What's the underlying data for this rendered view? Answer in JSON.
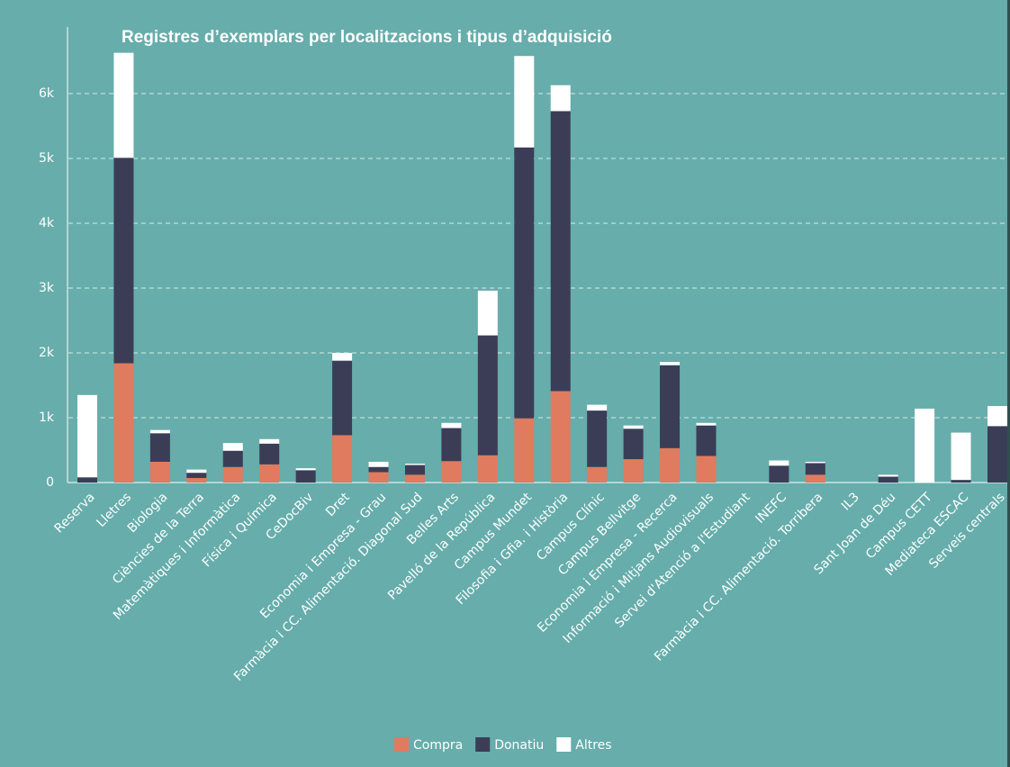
{
  "chart_data": {
    "type": "stacked_bar",
    "title": "Registres d’exemplars per localitzacions i tipus d’adquisició",
    "categories": [
      "Reserva",
      "Lletres",
      "Biologia",
      "Ciències de la Terra",
      "Matemàtiques i Informàtica",
      "Física i Química",
      "CeDocBiv",
      "Dret",
      "Economia i Empresa - Grau",
      "Farmàcia i CC. Alimentació. Diagonal Sud",
      "Belles Arts",
      "Pavelló de la República",
      "Campus Mundet",
      "Filosofia i Gfia. i Història",
      "Campus Clínic",
      "Campus Bellvitge",
      "Economia i Empresa - Recerca",
      "Informació i Mitjans Audiovisuals",
      "Servei d'Atenció a l'Estudiant",
      "INEFC",
      "Farmàcia i CC. Alimentació. Torribera",
      "IL3",
      "Sant Joan de Déu",
      "Campus CETT",
      "Mediateca ESCAC",
      "Serveis centrals"
    ],
    "series": [
      {
        "name": "Compra",
        "color": "#e07b5f",
        "values": [
          0,
          1840,
          320,
          70,
          240,
          280,
          0,
          730,
          160,
          120,
          330,
          420,
          990,
          1410,
          240,
          360,
          530,
          410,
          0,
          0,
          120,
          0,
          0,
          0,
          0,
          0
        ]
      },
      {
        "name": "Donatiu",
        "color": "#3b3d56",
        "values": [
          80,
          3170,
          440,
          80,
          250,
          320,
          190,
          1150,
          80,
          150,
          510,
          1850,
          4180,
          4320,
          870,
          470,
          1280,
          470,
          0,
          260,
          180,
          0,
          90,
          0,
          40,
          870
        ]
      },
      {
        "name": "Altres",
        "color": "#ffffff",
        "values": [
          1270,
          1620,
          50,
          50,
          120,
          70,
          30,
          120,
          80,
          20,
          80,
          690,
          1410,
          400,
          90,
          50,
          50,
          40,
          0,
          80,
          20,
          0,
          30,
          1140,
          730,
          310
        ]
      }
    ],
    "ylim": [
      0,
      7000
    ],
    "yticks": [
      0,
      {
        "value": 1000,
        "label": "1k"
      },
      {
        "value": 2000,
        "label": "2k"
      },
      {
        "value": 3000,
        "label": "3k"
      },
      {
        "value": 4000,
        "label": "4k"
      },
      {
        "value": 5000,
        "label": "5k"
      },
      {
        "value": 6000,
        "label": "6k"
      }
    ],
    "grid": true,
    "legend": "bottom"
  }
}
